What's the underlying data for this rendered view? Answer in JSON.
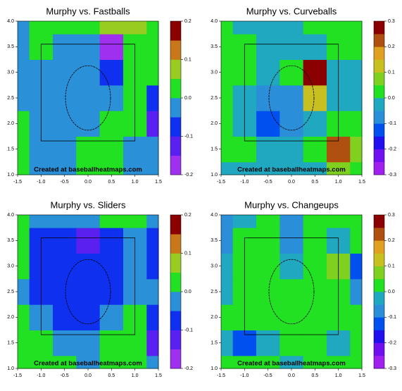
{
  "chart_data": [
    {
      "type": "heatmap",
      "title": "Murphy vs. Fastballs",
      "annotation": "Created at baseballheatmaps.com",
      "x": [
        -1.5,
        -1,
        -0.5,
        0,
        0.5,
        1,
        1.5
      ],
      "y": [
        1,
        1.5,
        2,
        2.5,
        3,
        3.5,
        4
      ],
      "z": [
        [
          0.02,
          -0.02,
          -0.02,
          0.03,
          0.03,
          -0.02,
          -0.02
        ],
        [
          0.02,
          -0.02,
          -0.02,
          0.03,
          0.04,
          -0.02,
          -0.03
        ],
        [
          0.02,
          -0.02,
          -0.03,
          -0.02,
          0.03,
          0.02,
          -0.12
        ],
        [
          -0.02,
          -0.03,
          -0.03,
          -0.03,
          -0.02,
          0.03,
          -0.08
        ],
        [
          -0.02,
          -0.03,
          -0.03,
          -0.03,
          -0.07,
          0.02,
          0.02
        ],
        [
          -0.02,
          0.02,
          -0.02,
          -0.03,
          -0.17,
          0.03,
          0.02
        ],
        [
          -0.02,
          0.02,
          0.02,
          0.03,
          0.06,
          0.06,
          0.02
        ]
      ],
      "xlim": [
        -1.5,
        1.5
      ],
      "xticks": [
        -1.5,
        {
          "value": -1,
          "label": "-1.0"
        },
        -0.5,
        {
          "value": 0,
          "label": "0.0"
        },
        0.5,
        {
          "value": 1,
          "label": "1.0"
        },
        1.5
      ],
      "ylim": [
        1,
        4
      ],
      "yticks": [
        {
          "value": 1,
          "label": "1.0"
        },
        1.5,
        {
          "value": 2,
          "label": "2.0"
        },
        2.5,
        {
          "value": 3,
          "label": "3.0"
        },
        3.5,
        {
          "value": 4,
          "label": "4.0"
        }
      ],
      "levels": [
        -0.2,
        -0.15,
        -0.1,
        -0.05,
        0,
        0.05,
        0.1,
        0.15,
        0.2
      ],
      "colors": [
        "#a030f0",
        "#5a20f0",
        "#1030f0",
        "#2a90d8",
        "#22e022",
        "#98cc20",
        "#c87818",
        "#8b0000"
      ],
      "colorbar_ticks": [
        -0.2,
        -0.1,
        {
          "value": 0,
          "label": "0.0"
        },
        0.1,
        0.2
      ]
    },
    {
      "type": "heatmap",
      "title": "Murphy vs. Curveballs",
      "annotation": "Created at baseballheatmaps.com",
      "x": [
        -1.5,
        -1,
        -0.5,
        0,
        0.5,
        1,
        1.5
      ],
      "y": [
        1,
        1.5,
        2,
        2.5,
        3,
        3.5,
        4
      ],
      "z": [
        [
          -0.02,
          -0.02,
          -0.02,
          -0.02,
          -0.02,
          0.05,
          0.02
        ],
        [
          0.02,
          0.02,
          -0.02,
          -0.02,
          0.02,
          0.22,
          0.05
        ],
        [
          0.02,
          -0.02,
          -0.12,
          -0.07,
          -0.02,
          0.02,
          0.02
        ],
        [
          0.02,
          -0.02,
          -0.07,
          -0.07,
          0.1,
          -0.02,
          -0.02
        ],
        [
          0.02,
          0.02,
          -0.02,
          0.03,
          0.27,
          -0.02,
          -0.02
        ],
        [
          0.02,
          0.02,
          -0.02,
          -0.02,
          -0.02,
          0.02,
          0.02
        ],
        [
          0.02,
          -0.02,
          -0.02,
          -0.02,
          0.02,
          0.03,
          0.02
        ]
      ],
      "xlim": [
        -1.5,
        1.5
      ],
      "xticks": [
        -1.5,
        {
          "value": -1,
          "label": "-1.0"
        },
        -0.5,
        {
          "value": 0,
          "label": "0.0"
        },
        0.5,
        {
          "value": 1,
          "label": "1.0"
        },
        1.5
      ],
      "ylim": [
        1,
        4
      ],
      "yticks": [
        {
          "value": 1,
          "label": "1.0"
        },
        1.5,
        {
          "value": 2,
          "label": "2.0"
        },
        2.5,
        {
          "value": 3,
          "label": "3.0"
        },
        3.5,
        {
          "value": 4,
          "label": "4.0"
        }
      ],
      "levels": [
        -0.3,
        -0.25,
        -0.2,
        -0.15,
        -0.1,
        -0.05,
        0,
        0.05,
        0.1,
        0.15,
        0.2,
        0.25,
        0.3
      ],
      "colors": [
        "#a020f0",
        "#7010f0",
        "#2010f0",
        "#0050f0",
        "#2a8fd8",
        "#20a8c0",
        "#22e022",
        "#80d020",
        "#c8c020",
        "#e0a020",
        "#b05010",
        "#8b0000"
      ],
      "colorbar_ticks": [
        -0.3,
        -0.2,
        -0.1,
        {
          "value": 0,
          "label": "0.0"
        },
        0.1,
        0.2,
        0.3
      ]
    },
    {
      "type": "heatmap",
      "title": "Murphy vs. Sliders",
      "annotation": "Created at baseballheatmaps.com",
      "x": [
        -1.5,
        -1,
        -0.5,
        0,
        0.5,
        1,
        1.5
      ],
      "y": [
        1,
        1.5,
        2,
        2.5,
        3,
        3.5,
        4
      ],
      "z": [
        [
          0.02,
          0.02,
          0.02,
          -0.02,
          0.02,
          0.02,
          -0.02
        ],
        [
          0.02,
          0.02,
          -0.02,
          -0.02,
          0.02,
          0.02,
          -0.12
        ],
        [
          0.02,
          -0.02,
          -0.07,
          -0.07,
          -0.02,
          0.02,
          -0.07
        ],
        [
          -0.02,
          -0.07,
          -0.07,
          -0.07,
          -0.07,
          -0.02,
          -0.02
        ],
        [
          0.02,
          -0.07,
          -0.07,
          -0.07,
          -0.07,
          -0.02,
          -0.07
        ],
        [
          0.02,
          -0.07,
          -0.07,
          -0.12,
          -0.07,
          -0.02,
          -0.07
        ],
        [
          0.02,
          -0.02,
          -0.02,
          -0.02,
          0.02,
          0.02,
          -0.02
        ]
      ],
      "xlim": [
        -1.5,
        1.5
      ],
      "xticks": [
        -1.5,
        {
          "value": -1,
          "label": "-1.0"
        },
        -0.5,
        {
          "value": 0,
          "label": "0.0"
        },
        0.5,
        {
          "value": 1,
          "label": "1.0"
        },
        1.5
      ],
      "ylim": [
        1,
        4
      ],
      "yticks": [
        {
          "value": 1,
          "label": "1.0"
        },
        1.5,
        {
          "value": 2,
          "label": "2.0"
        },
        2.5,
        {
          "value": 3,
          "label": "3.0"
        },
        3.5,
        {
          "value": 4,
          "label": "4.0"
        }
      ],
      "levels": [
        -0.2,
        -0.15,
        -0.1,
        -0.05,
        0,
        0.05,
        0.1,
        0.15,
        0.2
      ],
      "colors": [
        "#a030f0",
        "#5a20f0",
        "#1030f0",
        "#2a90d8",
        "#22e022",
        "#98cc20",
        "#c87818",
        "#8b0000"
      ],
      "colorbar_ticks": [
        -0.2,
        -0.1,
        {
          "value": 0,
          "label": "0.0"
        },
        0.1,
        0.2
      ]
    },
    {
      "type": "heatmap",
      "title": "Murphy vs. Changeups",
      "annotation": "Created at baseballheatmaps.com",
      "x": [
        -1.5,
        -1,
        -0.5,
        0,
        0.5,
        1,
        1.5
      ],
      "y": [
        1,
        1.5,
        2,
        2.5,
        3,
        3.5,
        4
      ],
      "z": [
        [
          0.02,
          0.02,
          0.02,
          -0.02,
          0.02,
          0.02,
          0.02
        ],
        [
          -0.02,
          -0.12,
          -0.02,
          0.02,
          0.02,
          -0.02,
          0.02
        ],
        [
          0.02,
          0.02,
          0.02,
          0.02,
          0.02,
          0.02,
          0.02
        ],
        [
          -0.02,
          0.02,
          0.02,
          0.02,
          0.02,
          0.02,
          -0.07
        ],
        [
          -0.02,
          0.02,
          0.02,
          -0.02,
          0.02,
          0.07,
          -0.12
        ],
        [
          -0.07,
          0.02,
          0.02,
          -0.07,
          0.02,
          -0.02,
          0.02
        ],
        [
          -0.07,
          -0.02,
          0.02,
          -0.07,
          0.02,
          0.02,
          0.02
        ]
      ],
      "xlim": [
        -1.5,
        1.5
      ],
      "xticks": [
        -1.5,
        {
          "value": -1,
          "label": "-1.0"
        },
        -0.5,
        {
          "value": 0,
          "label": "0.0"
        },
        0.5,
        {
          "value": 1,
          "label": "1.0"
        },
        1.5
      ],
      "ylim": [
        1,
        4
      ],
      "yticks": [
        {
          "value": 1,
          "label": "1.0"
        },
        1.5,
        {
          "value": 2,
          "label": "2.0"
        },
        2.5,
        {
          "value": 3,
          "label": "3.0"
        },
        3.5,
        {
          "value": 4,
          "label": "4.0"
        }
      ],
      "levels": [
        -0.3,
        -0.25,
        -0.2,
        -0.15,
        -0.1,
        -0.05,
        0,
        0.05,
        0.1,
        0.15,
        0.2,
        0.25,
        0.3
      ],
      "colors": [
        "#a020f0",
        "#7010f0",
        "#2010f0",
        "#0050f0",
        "#2a8fd8",
        "#20a8c0",
        "#22e022",
        "#80d020",
        "#c8c020",
        "#e0a020",
        "#b05010",
        "#8b0000"
      ],
      "colorbar_ticks": [
        -0.3,
        -0.2,
        -0.1,
        {
          "value": 0,
          "label": "0.0"
        },
        0.1,
        0.2,
        0.3
      ]
    }
  ]
}
